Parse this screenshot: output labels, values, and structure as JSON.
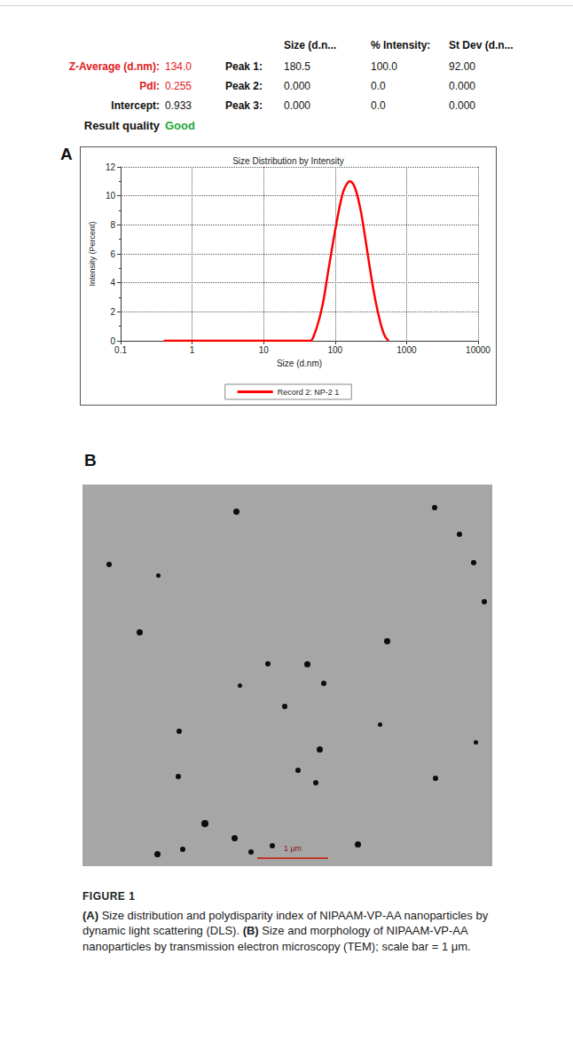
{
  "results": {
    "summary": [
      {
        "label": "Z-Average (d.nm):",
        "value": "134.0",
        "highlight": true
      },
      {
        "label": "PdI:",
        "value": "0.255",
        "highlight": true
      },
      {
        "label": "Intercept:",
        "value": "0.933",
        "highlight": false
      }
    ],
    "quality": {
      "label": "Result quality",
      "value": "Good"
    },
    "peaks": {
      "columns": [
        "Size (d.n...",
        "% Intensity:",
        "St Dev (d.n..."
      ],
      "rows": [
        {
          "label": "Peak 1:",
          "cells": [
            "180.5",
            "100.0",
            "92.00"
          ]
        },
        {
          "label": "Peak 2:",
          "cells": [
            "0.000",
            "0.0",
            "0.000"
          ]
        },
        {
          "label": "Peak 3:",
          "cells": [
            "0.000",
            "0.0",
            "0.000"
          ]
        }
      ]
    }
  },
  "panels": {
    "a": "A",
    "b": "B",
    "scale_bar": "1 μm"
  },
  "chart_data": {
    "type": "line",
    "title": "Size Distribution by Intensity",
    "x_label": "Size (d.nm)",
    "y_label": "Intensity (Percent)",
    "log": "x",
    "grid": true,
    "legend": "bottom",
    "xlim": [
      0.1,
      10000
    ],
    "xticks": [
      0.1,
      1,
      10,
      100,
      1000,
      10000
    ],
    "ylim": [
      0,
      12
    ],
    "yticks": [
      0,
      2,
      4,
      6,
      8,
      10,
      12
    ],
    "x": [
      0.4,
      45,
      50,
      60,
      70,
      80,
      90,
      100,
      115,
      130,
      145,
      160,
      180,
      200,
      230,
      260,
      300,
      350,
      400,
      450,
      500,
      560
    ],
    "series": [
      {
        "name": "Record 2: NP-2 1",
        "color": "#ff0000",
        "values": [
          0,
          0,
          0.3,
          1.5,
          3,
          4.8,
          6.3,
          7.6,
          9.2,
          10.3,
          10.8,
          11,
          10.8,
          10.2,
          8.9,
          7.3,
          5.3,
          3.3,
          1.9,
          0.9,
          0.3,
          0
        ]
      }
    ]
  },
  "caption": {
    "label": "FIGURE 1",
    "parts": [
      {
        "tag": "(A)",
        "text": "Size distribution and polydisparity index of NIPAAM-VP-AA nanoparticles by dynamic light scattering (DLS)."
      },
      {
        "tag": "(B)",
        "text": "Size and morphology of NIPAAM-VP-AA nanoparticles by transmission electron microscopy (TEM); scale bar = 1 μm."
      }
    ]
  }
}
